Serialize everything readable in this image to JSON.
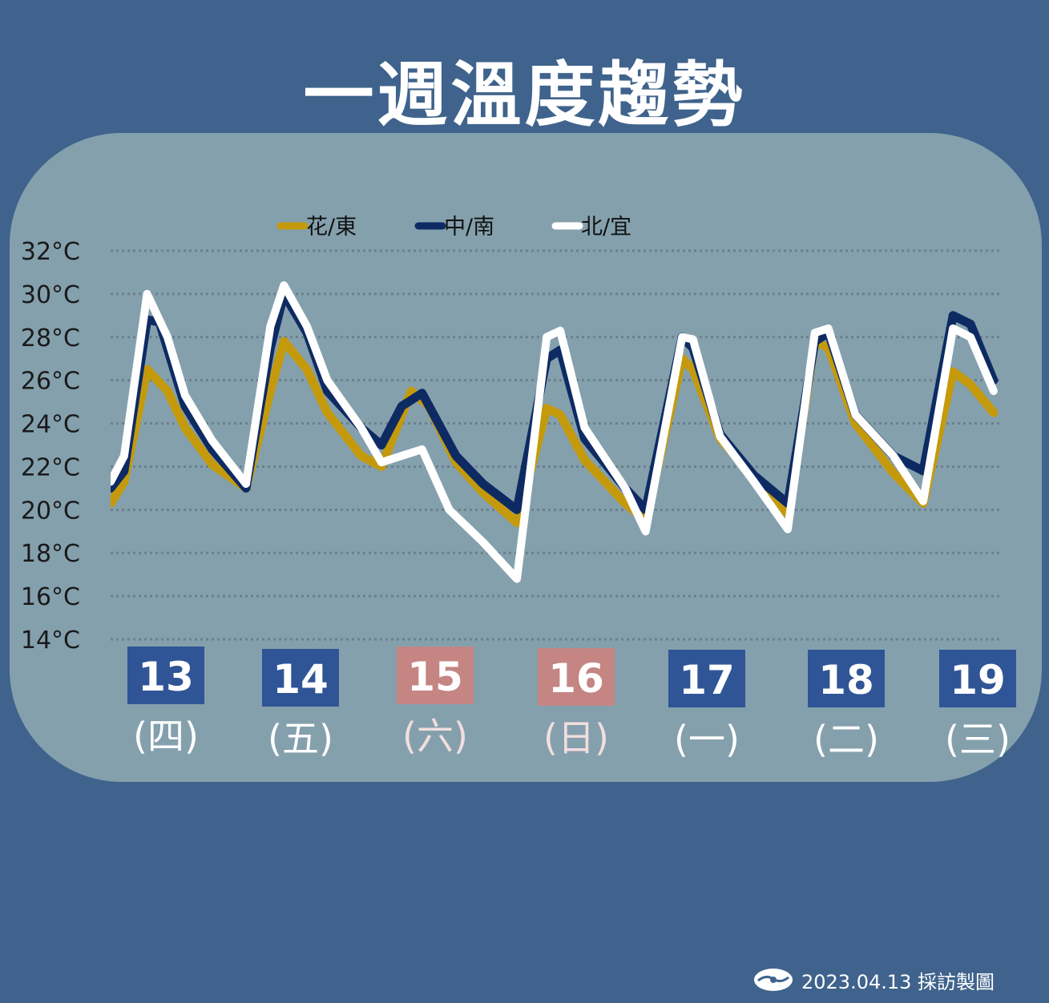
{
  "title": "一週溫度趨勢",
  "footer": {
    "credit": "2023.04.13 採訪製圖",
    "logo_icon": "cwb-logo-icon"
  },
  "colors": {
    "background": "#3f638c",
    "panel": "#84a0ad",
    "weekday_box": "#2f5597",
    "weekend_box": "#c48583",
    "weekday_text": "#ffffff",
    "weekend_text": "#f2dede"
  },
  "days": [
    {
      "date": "13",
      "weekday": "(四)",
      "weekend": false
    },
    {
      "date": "14",
      "weekday": "(五)",
      "weekend": false
    },
    {
      "date": "15",
      "weekday": "(六)",
      "weekend": true
    },
    {
      "date": "16",
      "weekday": "(日)",
      "weekend": true
    },
    {
      "date": "17",
      "weekday": "(一)",
      "weekend": false
    },
    {
      "date": "18",
      "weekday": "(二)",
      "weekend": false
    },
    {
      "date": "19",
      "weekday": "(三)",
      "weekend": false
    }
  ],
  "chart_data": {
    "type": "line",
    "ylim": [
      14,
      32
    ],
    "yticks": [
      "32°C",
      "30°C",
      "28°C",
      "26°C",
      "24°C",
      "22°C",
      "20°C",
      "18°C",
      "16°C",
      "14°C"
    ],
    "grid": true,
    "legend_position": "top-center",
    "x_note": "x is day index: 0 = 13th 00:00, 7 = 20th 00:00",
    "series": [
      {
        "name": "花/東",
        "color": "#c49a0c",
        "points": [
          [
            0,
            20.3
          ],
          [
            0.1,
            21.3
          ],
          [
            0.27,
            26.5
          ],
          [
            0.42,
            25.5
          ],
          [
            0.55,
            23.8
          ],
          [
            0.75,
            22.1
          ],
          [
            1.0,
            21.0
          ],
          [
            1.18,
            25.5
          ],
          [
            1.28,
            27.8
          ],
          [
            1.45,
            26.5
          ],
          [
            1.6,
            24.5
          ],
          [
            1.85,
            22.5
          ],
          [
            2.0,
            22.0
          ],
          [
            2.22,
            25.5
          ],
          [
            2.35,
            24.8
          ],
          [
            2.55,
            22.2
          ],
          [
            2.75,
            20.8
          ],
          [
            3.0,
            19.4
          ],
          [
            3.22,
            24.7
          ],
          [
            3.32,
            24.4
          ],
          [
            3.5,
            22.3
          ],
          [
            3.8,
            20.3
          ],
          [
            3.95,
            19.5
          ],
          [
            4.22,
            27.0
          ],
          [
            4.3,
            26.5
          ],
          [
            4.5,
            23.3
          ],
          [
            4.75,
            21.5
          ],
          [
            5.0,
            19.8
          ],
          [
            5.2,
            27.8
          ],
          [
            5.3,
            27.5
          ],
          [
            5.5,
            24.0
          ],
          [
            5.78,
            21.7
          ],
          [
            6.0,
            20.3
          ],
          [
            6.22,
            26.4
          ],
          [
            6.35,
            25.8
          ],
          [
            6.52,
            24.5
          ]
        ]
      },
      {
        "name": "中/南",
        "color": "#0e2a63",
        "points": [
          [
            0,
            21.0
          ],
          [
            0.1,
            21.8
          ],
          [
            0.27,
            28.8
          ],
          [
            0.36,
            28.7
          ],
          [
            0.55,
            24.8
          ],
          [
            0.75,
            22.8
          ],
          [
            1.0,
            21.0
          ],
          [
            1.18,
            27.5
          ],
          [
            1.28,
            30.0
          ],
          [
            1.45,
            28.2
          ],
          [
            1.6,
            25.5
          ],
          [
            1.85,
            23.8
          ],
          [
            2.0,
            23.0
          ],
          [
            2.15,
            24.8
          ],
          [
            2.3,
            25.4
          ],
          [
            2.55,
            22.5
          ],
          [
            2.75,
            21.2
          ],
          [
            3.0,
            20.0
          ],
          [
            3.22,
            27.0
          ],
          [
            3.32,
            27.4
          ],
          [
            3.5,
            23.3
          ],
          [
            3.8,
            21.0
          ],
          [
            3.95,
            20.0
          ],
          [
            4.22,
            28.0
          ],
          [
            4.3,
            27.5
          ],
          [
            4.5,
            23.5
          ],
          [
            4.75,
            21.6
          ],
          [
            5.0,
            20.3
          ],
          [
            5.2,
            27.8
          ],
          [
            5.3,
            28.2
          ],
          [
            5.5,
            24.4
          ],
          [
            5.78,
            22.5
          ],
          [
            6.0,
            21.8
          ],
          [
            6.22,
            29.0
          ],
          [
            6.35,
            28.6
          ],
          [
            6.52,
            26.0
          ]
        ]
      },
      {
        "name": "北/宜",
        "color": "#ffffff",
        "points": [
          [
            0,
            21.3
          ],
          [
            0.1,
            22.5
          ],
          [
            0.27,
            30.0
          ],
          [
            0.42,
            28.0
          ],
          [
            0.55,
            25.3
          ],
          [
            0.75,
            23.2
          ],
          [
            1.0,
            21.2
          ],
          [
            1.18,
            28.5
          ],
          [
            1.28,
            30.4
          ],
          [
            1.45,
            28.5
          ],
          [
            1.6,
            26.0
          ],
          [
            1.85,
            23.8
          ],
          [
            2.0,
            22.2
          ],
          [
            2.15,
            22.5
          ],
          [
            2.3,
            22.8
          ],
          [
            2.5,
            20.0
          ],
          [
            2.75,
            18.5
          ],
          [
            3.0,
            16.8
          ],
          [
            3.22,
            28.0
          ],
          [
            3.32,
            28.3
          ],
          [
            3.5,
            23.8
          ],
          [
            3.8,
            21.0
          ],
          [
            3.95,
            19.0
          ],
          [
            4.22,
            28.0
          ],
          [
            4.3,
            27.9
          ],
          [
            4.5,
            23.4
          ],
          [
            4.75,
            21.3
          ],
          [
            5.0,
            19.1
          ],
          [
            5.2,
            28.2
          ],
          [
            5.3,
            28.4
          ],
          [
            5.5,
            24.4
          ],
          [
            5.78,
            22.5
          ],
          [
            6.0,
            20.4
          ],
          [
            6.22,
            28.4
          ],
          [
            6.35,
            28.0
          ],
          [
            6.52,
            25.5
          ]
        ]
      }
    ]
  }
}
